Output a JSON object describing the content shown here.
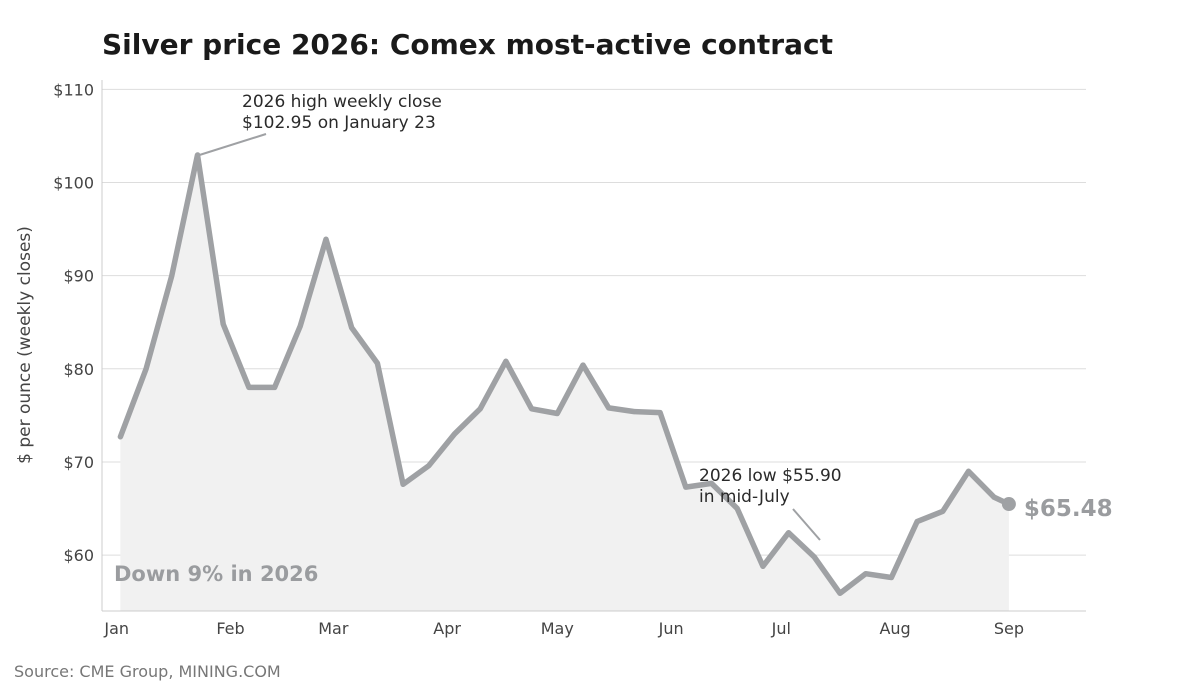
{
  "chart_data": {
    "type": "area",
    "title": "Silver price 2026: Comex most-active contract",
    "ylabel": "$ per ounce (weekly closes)",
    "xlabel": "",
    "ylim": [
      54,
      111
    ],
    "xlim_days": [
      "2025-12-28",
      "2026-09-22"
    ],
    "yticks": [
      60,
      70,
      80,
      90,
      100,
      110
    ],
    "ytick_labels": [
      "$60",
      "$70",
      "$80",
      "$90",
      "$100",
      "$110"
    ],
    "xtick_dates": [
      "2026-01-01",
      "2026-02-01",
      "2026-03-01",
      "2026-04-01",
      "2026-05-01",
      "2026-06-01",
      "2026-07-01",
      "2026-08-01",
      "2026-09-01"
    ],
    "xtick_labels": [
      "Jan",
      "Feb",
      "Mar",
      "Apr",
      "May",
      "Jun",
      "Jul",
      "Aug",
      "Sep"
    ],
    "grid": "horizontal",
    "series": [
      {
        "name": "",
        "color": "#9fa1a4",
        "fill": "#f1f1f1",
        "x": [
          "2026-01-02",
          "2026-01-09",
          "2026-01-16",
          "2026-01-23",
          "2026-01-30",
          "2026-02-06",
          "2026-02-13",
          "2026-02-20",
          "2026-02-27",
          "2026-03-06",
          "2026-03-13",
          "2026-03-20",
          "2026-03-27",
          "2026-04-03",
          "2026-04-10",
          "2026-04-17",
          "2026-04-24",
          "2026-05-01",
          "2026-05-08",
          "2026-05-15",
          "2026-05-22",
          "2026-05-29",
          "2026-06-05",
          "2026-06-12",
          "2026-06-19",
          "2026-06-26",
          "2026-07-03",
          "2026-07-10",
          "2026-07-17",
          "2026-07-24",
          "2026-07-31",
          "2026-08-07",
          "2026-08-14",
          "2026-08-21",
          "2026-08-28",
          "2026-09-01"
        ],
        "y": [
          72.7,
          80.0,
          90.0,
          102.95,
          84.8,
          78.0,
          78.0,
          84.6,
          93.9,
          84.4,
          80.6,
          67.6,
          69.6,
          73.0,
          75.7,
          80.8,
          75.7,
          75.2,
          80.4,
          75.8,
          75.4,
          75.3,
          67.3,
          67.7,
          65.0,
          58.8,
          62.4,
          59.8,
          55.9,
          58.0,
          57.6,
          63.6,
          64.7,
          69.0,
          66.2,
          65.48
        ]
      }
    ],
    "annotations": {
      "high": {
        "line1": "2026 high weekly close",
        "line2": "$102.95 on January 23",
        "point_date": "2026-01-23",
        "point_value": 102.95
      },
      "low": {
        "line1": "2026 low $55.90",
        "line2": "in mid-July",
        "point_date": "2026-07-17",
        "point_value": 55.9
      },
      "last_label": "$65.48",
      "summary": "Down 9% in 2026"
    }
  },
  "source": "Source: CME Group, MINING.COM"
}
